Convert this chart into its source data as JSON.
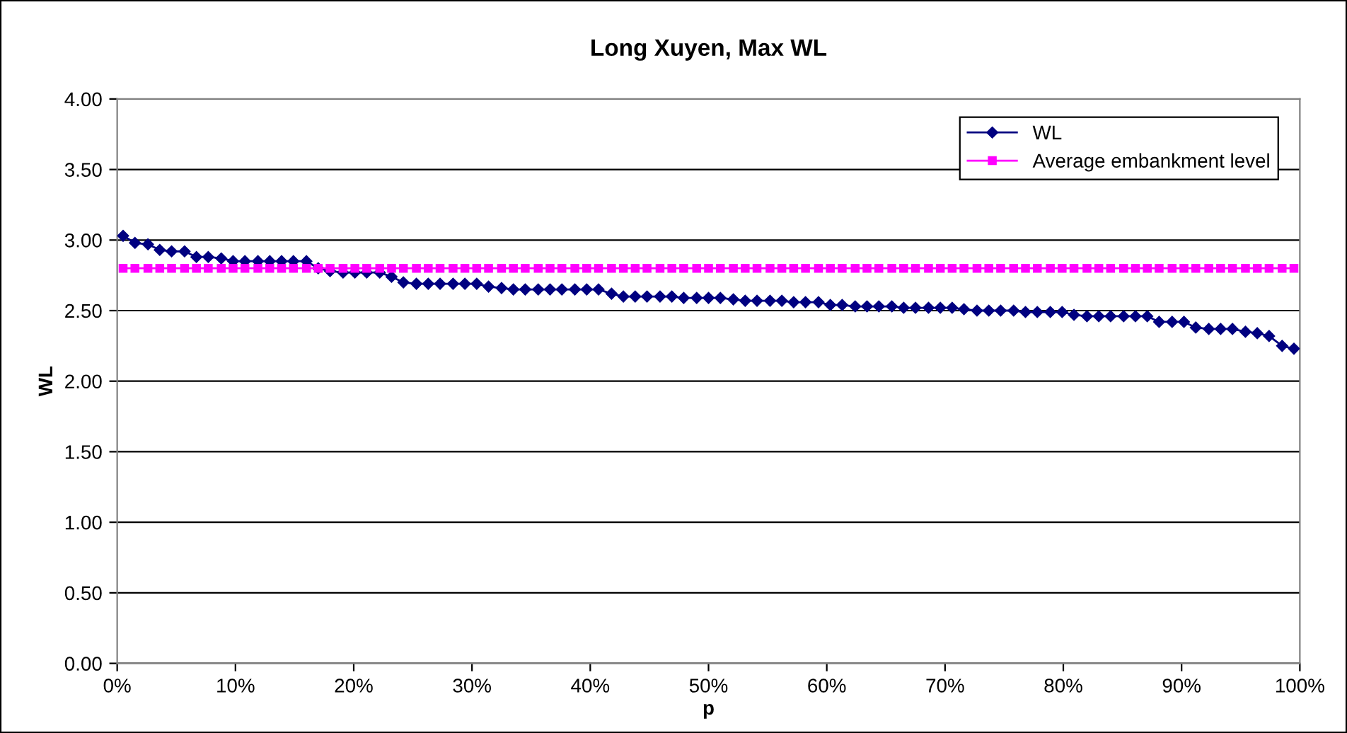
{
  "chart_data": {
    "type": "line",
    "title": "Long Xuyen, Max WL",
    "xlabel": "p",
    "ylabel": "WL",
    "x": [
      0.5,
      1.5,
      2.6,
      3.6,
      4.6,
      5.7,
      6.7,
      7.7,
      8.8,
      9.8,
      10.8,
      11.9,
      12.9,
      13.9,
      14.9,
      16.0,
      17.0,
      18.0,
      19.1,
      20.1,
      21.1,
      22.2,
      23.2,
      24.2,
      25.3,
      26.3,
      27.3,
      28.4,
      29.4,
      30.4,
      31.4,
      32.5,
      33.5,
      34.5,
      35.6,
      36.6,
      37.6,
      38.7,
      39.7,
      40.7,
      41.8,
      42.8,
      43.8,
      44.8,
      45.9,
      46.9,
      47.9,
      49.0,
      50.0,
      51.0,
      52.1,
      53.1,
      54.1,
      55.2,
      56.2,
      57.2,
      58.2,
      59.3,
      60.3,
      61.3,
      62.4,
      63.4,
      64.4,
      65.5,
      66.5,
      67.5,
      68.6,
      69.6,
      70.6,
      71.6,
      72.7,
      73.7,
      74.7,
      75.8,
      76.8,
      77.8,
      78.9,
      79.9,
      80.9,
      82.0,
      83.0,
      84.0,
      85.1,
      86.1,
      87.1,
      88.1,
      89.2,
      90.2,
      91.2,
      92.3,
      93.3,
      94.3,
      95.4,
      96.4,
      97.4,
      98.5,
      99.5
    ],
    "series": [
      {
        "name": "WL",
        "color": "#000080",
        "marker": "diamond",
        "values": [
          3.03,
          2.98,
          2.97,
          2.93,
          2.92,
          2.92,
          2.88,
          2.88,
          2.87,
          2.85,
          2.85,
          2.85,
          2.85,
          2.85,
          2.85,
          2.85,
          2.8,
          2.78,
          2.77,
          2.77,
          2.77,
          2.77,
          2.74,
          2.7,
          2.69,
          2.69,
          2.69,
          2.69,
          2.69,
          2.69,
          2.67,
          2.66,
          2.65,
          2.65,
          2.65,
          2.65,
          2.65,
          2.65,
          2.65,
          2.65,
          2.62,
          2.6,
          2.6,
          2.6,
          2.6,
          2.6,
          2.59,
          2.59,
          2.59,
          2.59,
          2.58,
          2.57,
          2.57,
          2.57,
          2.57,
          2.56,
          2.56,
          2.56,
          2.54,
          2.54,
          2.53,
          2.53,
          2.53,
          2.53,
          2.52,
          2.52,
          2.52,
          2.52,
          2.52,
          2.51,
          2.5,
          2.5,
          2.5,
          2.5,
          2.49,
          2.49,
          2.49,
          2.49,
          2.47,
          2.46,
          2.46,
          2.46,
          2.46,
          2.46,
          2.46,
          2.42,
          2.42,
          2.42,
          2.38,
          2.37,
          2.37,
          2.37,
          2.35,
          2.34,
          2.32,
          2.25,
          2.23
        ]
      },
      {
        "name": "Average embankment level",
        "color": "#ff00ff",
        "marker": "square",
        "values": [
          2.8,
          2.8,
          2.8,
          2.8,
          2.8,
          2.8,
          2.8,
          2.8,
          2.8,
          2.8,
          2.8,
          2.8,
          2.8,
          2.8,
          2.8,
          2.8,
          2.8,
          2.8,
          2.8,
          2.8,
          2.8,
          2.8,
          2.8,
          2.8,
          2.8,
          2.8,
          2.8,
          2.8,
          2.8,
          2.8,
          2.8,
          2.8,
          2.8,
          2.8,
          2.8,
          2.8,
          2.8,
          2.8,
          2.8,
          2.8,
          2.8,
          2.8,
          2.8,
          2.8,
          2.8,
          2.8,
          2.8,
          2.8,
          2.8,
          2.8,
          2.8,
          2.8,
          2.8,
          2.8,
          2.8,
          2.8,
          2.8,
          2.8,
          2.8,
          2.8,
          2.8,
          2.8,
          2.8,
          2.8,
          2.8,
          2.8,
          2.8,
          2.8,
          2.8,
          2.8,
          2.8,
          2.8,
          2.8,
          2.8,
          2.8,
          2.8,
          2.8,
          2.8,
          2.8,
          2.8,
          2.8,
          2.8,
          2.8,
          2.8,
          2.8,
          2.8,
          2.8,
          2.8,
          2.8,
          2.8,
          2.8,
          2.8,
          2.8,
          2.8,
          2.8,
          2.8,
          2.8
        ]
      }
    ],
    "xlim": [
      0,
      100
    ],
    "xticks": [
      {
        "value": 0,
        "label": "0%"
      },
      {
        "value": 10,
        "label": "10%"
      },
      {
        "value": 20,
        "label": "20%"
      },
      {
        "value": 30,
        "label": "30%"
      },
      {
        "value": 40,
        "label": "40%"
      },
      {
        "value": 50,
        "label": "50%"
      },
      {
        "value": 60,
        "label": "60%"
      },
      {
        "value": 70,
        "label": "70%"
      },
      {
        "value": 80,
        "label": "80%"
      },
      {
        "value": 90,
        "label": "90%"
      },
      {
        "value": 100,
        "label": "100%"
      }
    ],
    "ylim": [
      0,
      4
    ],
    "yticks": [
      {
        "value": 0,
        "label": "0.00"
      },
      {
        "value": 0.5,
        "label": "0.50"
      },
      {
        "value": 1,
        "label": "1.00"
      },
      {
        "value": 1.5,
        "label": "1.50"
      },
      {
        "value": 2,
        "label": "2.00"
      },
      {
        "value": 2.5,
        "label": "2.50"
      },
      {
        "value": 3,
        "label": "3.00"
      },
      {
        "value": 3.5,
        "label": "3.50"
      },
      {
        "value": 4,
        "label": "4.00"
      }
    ],
    "grid": "y",
    "legend": "top right",
    "line_style": "solid"
  }
}
